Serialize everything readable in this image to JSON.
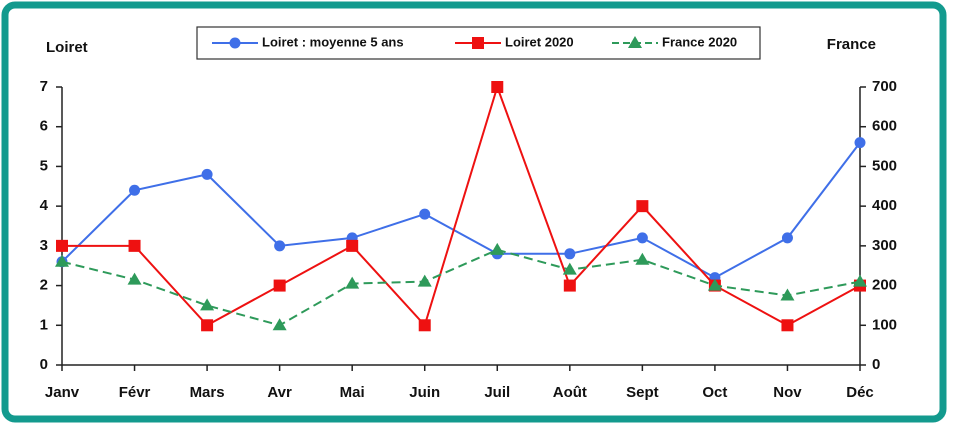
{
  "chart_data": {
    "type": "line",
    "ylabel": "Loiret",
    "y2label": "France",
    "categories": [
      "Janv",
      "Févr",
      "Mars",
      "Avr",
      "Mai",
      "Juin",
      "Juil",
      "Août",
      "Sept",
      "Oct",
      "Nov",
      "Déc"
    ],
    "series": [
      {
        "name": "Loiret : moyenne 5 ans",
        "color": "#3f6fe8",
        "marker": "circle",
        "dashed": false,
        "values": [
          2.6,
          4.4,
          4.8,
          3.0,
          3.2,
          3.8,
          2.8,
          2.8,
          3.2,
          2.2,
          3.2,
          5.6
        ]
      },
      {
        "name": "Loiret 2020",
        "color": "#ee1111",
        "marker": "square",
        "dashed": false,
        "values": [
          3,
          3,
          1,
          2,
          3,
          1,
          7,
          2,
          4,
          2,
          1,
          2
        ]
      },
      {
        "name": "France 2020",
        "color": "#2e9a5a",
        "marker": "triangle",
        "dashed": true,
        "axis": "y2",
        "values": [
          260,
          215,
          150,
          100,
          205,
          210,
          290,
          240,
          265,
          200,
          175,
          210
        ]
      }
    ],
    "ylim": [
      0,
      7
    ],
    "yticks": [
      0,
      1,
      2,
      3,
      4,
      5,
      6,
      7
    ],
    "y2lim": [
      0,
      700
    ],
    "y2ticks": [
      0,
      100,
      200,
      300,
      400,
      500,
      600,
      700
    ],
    "legend": "top",
    "grid": false
  }
}
